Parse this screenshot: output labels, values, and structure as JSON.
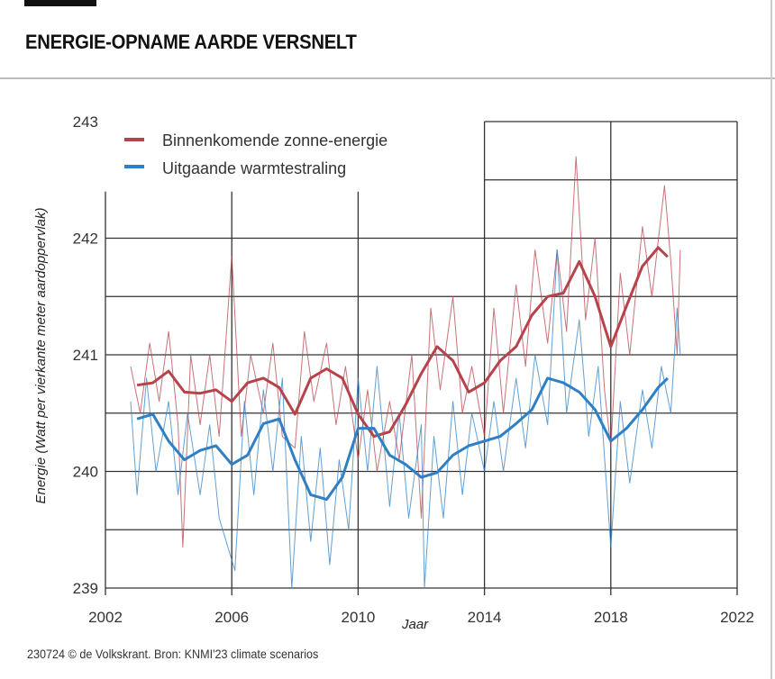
{
  "header": {
    "title": "ENERGIE-OPNAME AARDE VERSNELT"
  },
  "footer": {
    "credit": "230724 © de Volkskrant. Bron: KNMI'23 climate scenarios"
  },
  "chart_data": {
    "type": "line",
    "title": "ENERGIE-OPNAME AARDE VERSNELT",
    "xlabel": "Jaar",
    "ylabel": "Energie (Watt per vierkante meter aardoppervlak)",
    "xlim": [
      2002,
      2022
    ],
    "ylim": [
      239,
      243
    ],
    "xticks": [
      "2002",
      "2006",
      "2010",
      "2014",
      "2018",
      "2022"
    ],
    "yticks": [
      "239",
      "240",
      "241",
      "242",
      "243"
    ],
    "grid": true,
    "legend_position": "top-left",
    "colors": {
      "incoming": "#b5434b",
      "outgoing": "#2f7fc4"
    },
    "legend": [
      {
        "label": "Binnenkomende zonne-energie",
        "color": "#b5434b"
      },
      {
        "label": "Uitgaande warmtestraling",
        "color": "#2f7fc4"
      }
    ],
    "series": [
      {
        "name": "Binnenkomende zonne-energie",
        "kind": "smoothed",
        "color": "#b5434b",
        "x": [
          2003,
          2003.5,
          2004,
          2004.5,
          2005,
          2005.5,
          2006,
          2006.5,
          2007,
          2007.5,
          2008,
          2008.5,
          2009,
          2009.5,
          2010,
          2010.5,
          2011,
          2011.5,
          2012,
          2012.5,
          2013,
          2013.5,
          2014,
          2014.5,
          2015,
          2015.5,
          2016,
          2016.5,
          2017,
          2017.5,
          2018,
          2018.5,
          2019,
          2019.5,
          2019.8
        ],
        "y": [
          240.74,
          240.76,
          240.86,
          240.68,
          240.67,
          240.7,
          240.6,
          240.76,
          240.8,
          240.72,
          240.49,
          240.8,
          240.88,
          240.8,
          240.49,
          240.3,
          240.34,
          240.57,
          240.84,
          241.07,
          240.95,
          240.68,
          240.76,
          240.95,
          241.07,
          241.34,
          241.5,
          241.53,
          241.8,
          241.5,
          241.07,
          241.42,
          241.76,
          241.92,
          241.84
        ]
      },
      {
        "name": "Binnenkomende zonne-energie",
        "kind": "monthly",
        "color": "#b5434b",
        "x": [
          2002.8,
          2003.1,
          2003.4,
          2003.7,
          2004.0,
          2004.3,
          2004.45,
          2004.7,
          2005.0,
          2005.3,
          2005.6,
          2006.0,
          2006.3,
          2006.6,
          2007.0,
          2007.3,
          2007.6,
          2008.0,
          2008.3,
          2008.6,
          2009.0,
          2009.3,
          2009.6,
          2010.0,
          2010.3,
          2010.6,
          2011.0,
          2011.3,
          2011.7,
          2012.0,
          2012.3,
          2012.6,
          2013.0,
          2013.3,
          2013.6,
          2014.0,
          2014.3,
          2014.6,
          2015.0,
          2015.3,
          2015.6,
          2016.0,
          2016.3,
          2016.6,
          2016.9,
          2017.2,
          2017.5,
          2017.8,
          2018.0,
          2018.3,
          2018.6,
          2019.0,
          2019.3,
          2019.7,
          2019.9,
          2020.1,
          2020.2
        ],
        "y": [
          240.9,
          240.5,
          241.1,
          240.6,
          241.2,
          240.4,
          239.35,
          241.0,
          240.4,
          241.0,
          240.3,
          241.85,
          240.3,
          241.0,
          240.5,
          241.1,
          240.3,
          240.2,
          241.2,
          240.6,
          241.1,
          240.4,
          240.9,
          240.1,
          240.7,
          240.0,
          240.6,
          240.1,
          241.0,
          239.6,
          241.4,
          240.7,
          241.5,
          240.5,
          240.9,
          240.3,
          241.4,
          240.5,
          241.6,
          240.9,
          241.9,
          241.1,
          241.9,
          241.2,
          242.7,
          241.3,
          242.0,
          240.7,
          240.2,
          241.7,
          241.0,
          242.1,
          241.5,
          242.45,
          241.8,
          241.0,
          241.9
        ]
      },
      {
        "name": "Uitgaande warmtestraling",
        "kind": "smoothed",
        "color": "#2f7fc4",
        "x": [
          2003,
          2003.5,
          2004,
          2004.5,
          2005,
          2005.5,
          2006,
          2006.5,
          2007,
          2007.5,
          2008,
          2008.5,
          2009,
          2009.5,
          2010,
          2010.5,
          2011,
          2011.5,
          2012,
          2012.5,
          2013,
          2013.5,
          2014,
          2014.5,
          2015,
          2015.5,
          2016,
          2016.5,
          2017,
          2017.5,
          2018,
          2018.5,
          2019,
          2019.5,
          2019.8
        ],
        "y": [
          240.45,
          240.49,
          240.26,
          240.1,
          240.18,
          240.22,
          240.06,
          240.14,
          240.41,
          240.45,
          240.1,
          239.8,
          239.76,
          239.95,
          240.37,
          240.37,
          240.14,
          240.06,
          239.95,
          239.99,
          240.14,
          240.22,
          240.26,
          240.3,
          240.41,
          240.53,
          240.8,
          240.76,
          240.68,
          240.53,
          240.26,
          240.37,
          240.53,
          240.72,
          240.8
        ]
      },
      {
        "name": "Uitgaande warmtestraling",
        "kind": "monthly",
        "color": "#2f7fc4",
        "x": [
          2002.8,
          2003.0,
          2003.3,
          2003.6,
          2004.0,
          2004.3,
          2004.6,
          2005.0,
          2005.3,
          2005.6,
          2006.1,
          2006.4,
          2006.7,
          2007.0,
          2007.3,
          2007.6,
          2007.9,
          2008.2,
          2008.5,
          2008.8,
          2009.1,
          2009.4,
          2009.7,
          2010.0,
          2010.3,
          2010.6,
          2011.0,
          2011.3,
          2011.6,
          2012.0,
          2012.1,
          2012.4,
          2012.7,
          2013.0,
          2013.3,
          2013.6,
          2014.0,
          2014.3,
          2014.6,
          2015.0,
          2015.3,
          2015.6,
          2016.0,
          2016.3,
          2016.6,
          2017.0,
          2017.3,
          2017.6,
          2018.0,
          2018.3,
          2018.6,
          2019.0,
          2019.3,
          2019.6,
          2019.9,
          2020.1,
          2020.2
        ],
        "y": [
          240.6,
          239.8,
          240.8,
          240.0,
          240.6,
          239.8,
          240.5,
          239.8,
          240.4,
          239.6,
          239.15,
          240.6,
          239.8,
          240.7,
          240.0,
          240.8,
          239.0,
          240.3,
          239.4,
          240.2,
          239.2,
          240.1,
          239.5,
          240.8,
          240.0,
          240.9,
          239.7,
          240.5,
          239.6,
          240.4,
          239.0,
          240.3,
          239.6,
          240.6,
          239.8,
          240.5,
          240.0,
          240.6,
          240.0,
          240.8,
          240.2,
          241.0,
          240.4,
          241.9,
          240.5,
          241.3,
          240.3,
          240.9,
          239.35,
          240.6,
          239.9,
          240.7,
          240.2,
          240.9,
          240.5,
          241.4,
          241.0
        ]
      }
    ]
  }
}
